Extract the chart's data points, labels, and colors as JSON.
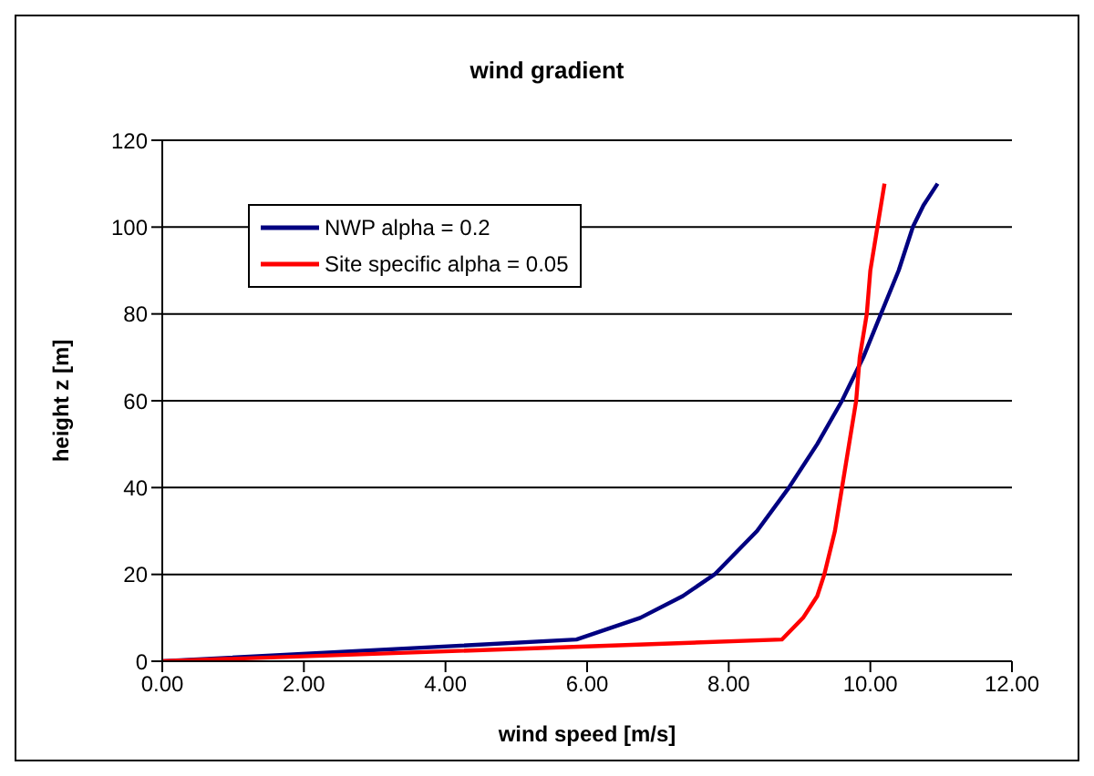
{
  "chart_data": {
    "type": "line",
    "title": "wind gradient",
    "xlabel": "wind speed [m/s]",
    "ylabel": "height z [m]",
    "series": [
      {
        "name": "NWP alpha = 0.2",
        "color": "#000080",
        "x": [
          0,
          5.85,
          6.75,
          7.35,
          7.8,
          8.4,
          8.85,
          9.25,
          9.6,
          9.9,
          10.15,
          10.4,
          10.6,
          10.75,
          10.95
        ],
        "values": [
          0,
          5,
          10,
          15,
          20,
          30,
          40,
          50,
          60,
          70,
          80,
          90,
          100,
          105,
          110
        ]
      },
      {
        "name": "Site specific alpha = 0.05",
        "color": "#ff0000",
        "x": [
          0,
          8.75,
          9.05,
          9.25,
          9.35,
          9.5,
          9.6,
          9.7,
          9.8,
          9.85,
          9.95,
          10.0,
          10.1,
          10.15,
          10.2
        ],
        "values": [
          0,
          5,
          10,
          15,
          20,
          30,
          40,
          50,
          60,
          70,
          80,
          90,
          100,
          105,
          110
        ]
      }
    ],
    "xlim": [
      0,
      12
    ],
    "xticks": [
      {
        "value": 0,
        "label": "0.00"
      },
      {
        "value": 2,
        "label": "2.00"
      },
      {
        "value": 4,
        "label": "4.00"
      },
      {
        "value": 6,
        "label": "6.00"
      },
      {
        "value": 8,
        "label": "8.00"
      },
      {
        "value": 10,
        "label": "10.00"
      },
      {
        "value": 12,
        "label": "12.00"
      }
    ],
    "ylim": [
      0,
      120
    ],
    "yticks": [
      0,
      20,
      40,
      60,
      80,
      100,
      120
    ],
    "grid": "y",
    "legend": "top left",
    "marker": "none",
    "line_style": "solid"
  }
}
